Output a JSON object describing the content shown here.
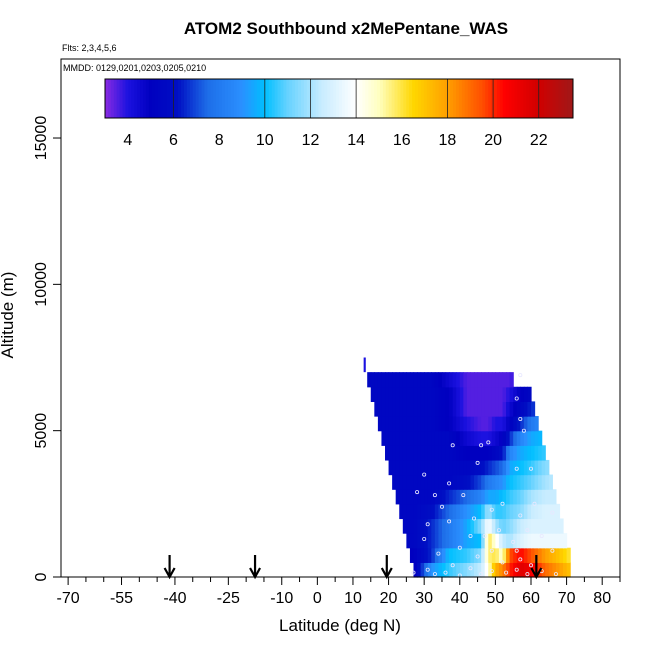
{
  "chart_data": {
    "type": "heatmap",
    "title": "ATOM2 Southbound x2MePentane_WAS",
    "subtitle_flights": "Flts: 2,3,4,5,6",
    "subtitle_dates": "MMDD: 0129,0201,0203,0205,0210",
    "xlabel": "Latitude (deg N)",
    "ylabel": "Altitude (m)",
    "xlim": [
      -72,
      85
    ],
    "ylim": [
      0,
      17700
    ],
    "xticks_major": [
      -70,
      -55,
      -40,
      -25,
      -10,
      0,
      10,
      20,
      30,
      40,
      50,
      60,
      70,
      80
    ],
    "xticks_minor": [
      -65,
      -60,
      -50,
      -45,
      -35,
      -30,
      -20,
      -15,
      -5,
      5,
      15,
      25,
      35,
      45,
      55,
      65,
      75,
      85
    ],
    "yticks": [
      0,
      5000,
      10000,
      15000
    ],
    "colorbar": {
      "min": 3,
      "max": 23.5,
      "ticks": [
        4,
        6,
        8,
        10,
        12,
        14,
        16,
        18,
        20,
        22
      ],
      "dividers": [
        6,
        10,
        12,
        14,
        18,
        20,
        22
      ]
    },
    "color_stops": [
      {
        "v": 3.0,
        "c": "#8a2be2"
      },
      {
        "v": 4.0,
        "c": "#1c12e0"
      },
      {
        "v": 5.0,
        "c": "#0000c0"
      },
      {
        "v": 6.2,
        "c": "#0010c4"
      },
      {
        "v": 7.5,
        "c": "#1e6ee8"
      },
      {
        "v": 9.0,
        "c": "#2a90ff"
      },
      {
        "v": 10.0,
        "c": "#00bfff"
      },
      {
        "v": 11.0,
        "c": "#66d2ff"
      },
      {
        "v": 12.5,
        "c": "#c8ecff"
      },
      {
        "v": 14.0,
        "c": "#ffffff"
      },
      {
        "v": 15.0,
        "c": "#ffffc0"
      },
      {
        "v": 16.5,
        "c": "#ffd700"
      },
      {
        "v": 18.0,
        "c": "#ff9f00"
      },
      {
        "v": 19.5,
        "c": "#ff5000"
      },
      {
        "v": 20.5,
        "c": "#ff0000"
      },
      {
        "v": 22.0,
        "c": "#d00000"
      },
      {
        "v": 23.5,
        "c": "#a01818"
      }
    ],
    "curtain": {
      "alt_bins": [
        0,
        500,
        1000,
        1500,
        2000,
        2500,
        3000,
        3500,
        4000,
        4500,
        5000,
        5500,
        6000,
        6500,
        7000
      ],
      "left_edge": [
        27,
        26,
        25,
        24,
        23,
        22,
        21,
        20,
        19,
        18,
        17,
        16,
        15,
        14
      ],
      "right_edge": [
        71,
        71,
        70,
        69,
        68,
        67,
        66,
        65,
        64,
        63,
        62,
        61,
        60,
        55
      ],
      "lat_step": 1,
      "anchors": [
        {
          "lat": 27,
          "rows": [
            4.5,
            5.0,
            5.5,
            5.5,
            5.5,
            5.5,
            5.5,
            5.5,
            5.5,
            5.5,
            5.5,
            5.5,
            5.5,
            5.5
          ]
        },
        {
          "lat": 32,
          "rows": [
            9.0,
            6.5,
            6.5,
            6.5,
            6.0,
            5.5,
            5.5,
            5.5,
            5.5,
            5.5,
            5.5,
            5.5,
            5.5,
            5.5
          ]
        },
        {
          "lat": 37,
          "rows": [
            10.5,
            10.0,
            8.0,
            8.0,
            7.5,
            6.5,
            5.5,
            5.5,
            5.5,
            5.5,
            5.0,
            5.0,
            5.0,
            4.5
          ]
        },
        {
          "lat": 42,
          "rows": [
            11.5,
            10.5,
            9.5,
            9.5,
            9.0,
            7.5,
            6.0,
            5.5,
            5.0,
            4.5,
            4.0,
            3.5,
            3.5,
            3.5
          ]
        },
        {
          "lat": 46,
          "rows": [
            12.5,
            11.5,
            10.0,
            11.5,
            10.0,
            8.5,
            7.0,
            6.0,
            5.0,
            4.0,
            3.5,
            3.5,
            3.5,
            3.5
          ]
        },
        {
          "lat": 48,
          "rows": [
            14.5,
            15.5,
            16.0,
            14.0,
            12.0,
            9.5,
            8.0,
            6.5,
            5.0,
            4.0,
            3.5,
            3.5,
            3.5,
            3.5
          ]
        },
        {
          "lat": 50,
          "rows": [
            17.5,
            16.0,
            14.5,
            12.0,
            10.5,
            9.5,
            8.5,
            7.0,
            5.5,
            4.5,
            4.0,
            3.5,
            3.5,
            3.5
          ]
        },
        {
          "lat": 52,
          "rows": [
            18.5,
            14.5,
            12.5,
            11.0,
            10.5,
            10.0,
            9.0,
            7.5,
            6.0,
            5.0,
            4.0,
            3.5,
            3.5,
            3.5
          ]
        },
        {
          "lat": 54,
          "rows": [
            20.0,
            19.5,
            12.0,
            11.5,
            11.0,
            10.5,
            10.0,
            9.5,
            8.5,
            6.5,
            5.0,
            4.5,
            4.0,
            3.5
          ]
        },
        {
          "lat": 57,
          "rows": [
            21.5,
            20.5,
            13.0,
            12.5,
            11.5,
            11.0,
            10.5,
            10.0,
            9.5,
            8.5,
            6.5,
            5.5,
            5.0,
            4.5
          ]
        },
        {
          "lat": 60,
          "rows": [
            21.0,
            19.5,
            13.5,
            13.0,
            12.5,
            12.0,
            11.0,
            10.5,
            10.0,
            9.5,
            8.0,
            6.5,
            5.5,
            5.0
          ]
        },
        {
          "lat": 64,
          "rows": [
            19.0,
            18.0,
            13.5,
            13.0,
            13.0,
            12.5,
            12.0,
            11.5,
            10.5,
            10.0,
            9.0,
            7.5,
            6.5,
            5.5
          ]
        },
        {
          "lat": 68,
          "rows": [
            18.0,
            17.0,
            13.5,
            13.0,
            13.0,
            12.5,
            12.5,
            12.0,
            11.0,
            10.5,
            9.5,
            8.5,
            7.0,
            6.0
          ]
        },
        {
          "lat": 71,
          "rows": [
            17.0,
            16.0,
            13.5,
            13.0,
            13.0,
            12.5,
            12.5,
            12.0,
            11.5,
            11.0,
            10.0,
            9.0,
            7.5,
            6.5
          ]
        }
      ],
      "isolated_cell": {
        "lat": 13,
        "alt_low": 7000,
        "alt_high": 7500,
        "value": 4.0
      }
    },
    "sample_points": [
      {
        "lat": 56,
        "alt": 6100
      },
      {
        "lat": 57,
        "alt": 6900
      },
      {
        "lat": 57,
        "alt": 5400
      },
      {
        "lat": 58,
        "alt": 5000
      },
      {
        "lat": 48,
        "alt": 4600
      },
      {
        "lat": 46,
        "alt": 4500
      },
      {
        "lat": 38,
        "alt": 4500
      },
      {
        "lat": 56,
        "alt": 3700
      },
      {
        "lat": 45,
        "alt": 3900
      },
      {
        "lat": 37,
        "alt": 3200
      },
      {
        "lat": 60,
        "alt": 3700
      },
      {
        "lat": 30,
        "alt": 3500
      },
      {
        "lat": 28,
        "alt": 2900
      },
      {
        "lat": 33,
        "alt": 2800
      },
      {
        "lat": 41,
        "alt": 2800
      },
      {
        "lat": 52,
        "alt": 2500
      },
      {
        "lat": 61,
        "alt": 2500
      },
      {
        "lat": 35,
        "alt": 2400
      },
      {
        "lat": 49,
        "alt": 2300
      },
      {
        "lat": 57,
        "alt": 2100
      },
      {
        "lat": 66,
        "alt": 2200
      },
      {
        "lat": 44,
        "alt": 2000
      },
      {
        "lat": 31,
        "alt": 1800
      },
      {
        "lat": 37,
        "alt": 1900
      },
      {
        "lat": 51,
        "alt": 1600
      },
      {
        "lat": 59,
        "alt": 1600
      },
      {
        "lat": 47,
        "alt": 1400
      },
      {
        "lat": 43,
        "alt": 1400
      },
      {
        "lat": 63,
        "alt": 1400
      },
      {
        "lat": 30,
        "alt": 1300
      },
      {
        "lat": 55,
        "alt": 1200
      },
      {
        "lat": 40,
        "alt": 1000
      },
      {
        "lat": 49,
        "alt": 900
      },
      {
        "lat": 56,
        "alt": 900
      },
      {
        "lat": 66,
        "alt": 900
      },
      {
        "lat": 34,
        "alt": 800
      },
      {
        "lat": 45,
        "alt": 700
      },
      {
        "lat": 57,
        "alt": 600
      },
      {
        "lat": 52,
        "alt": 500
      },
      {
        "lat": 38,
        "alt": 400
      },
      {
        "lat": 60,
        "alt": 400
      },
      {
        "lat": 43,
        "alt": 300
      },
      {
        "lat": 31,
        "alt": 250
      },
      {
        "lat": 56,
        "alt": 250
      },
      {
        "lat": 49,
        "alt": 200
      },
      {
        "lat": 63,
        "alt": 200
      },
      {
        "lat": 27,
        "alt": 150
      },
      {
        "lat": 36,
        "alt": 150
      },
      {
        "lat": 53,
        "alt": 150
      },
      {
        "lat": 46,
        "alt": 100
      },
      {
        "lat": 59,
        "alt": 100
      },
      {
        "lat": 33,
        "alt": 100
      },
      {
        "lat": 67,
        "alt": 100
      },
      {
        "lat": 40,
        "alt": 50
      }
    ],
    "arrows_lat": [
      -41.5,
      -17.5,
      19.5,
      61.5
    ],
    "point_color": "#e8e8ff"
  }
}
